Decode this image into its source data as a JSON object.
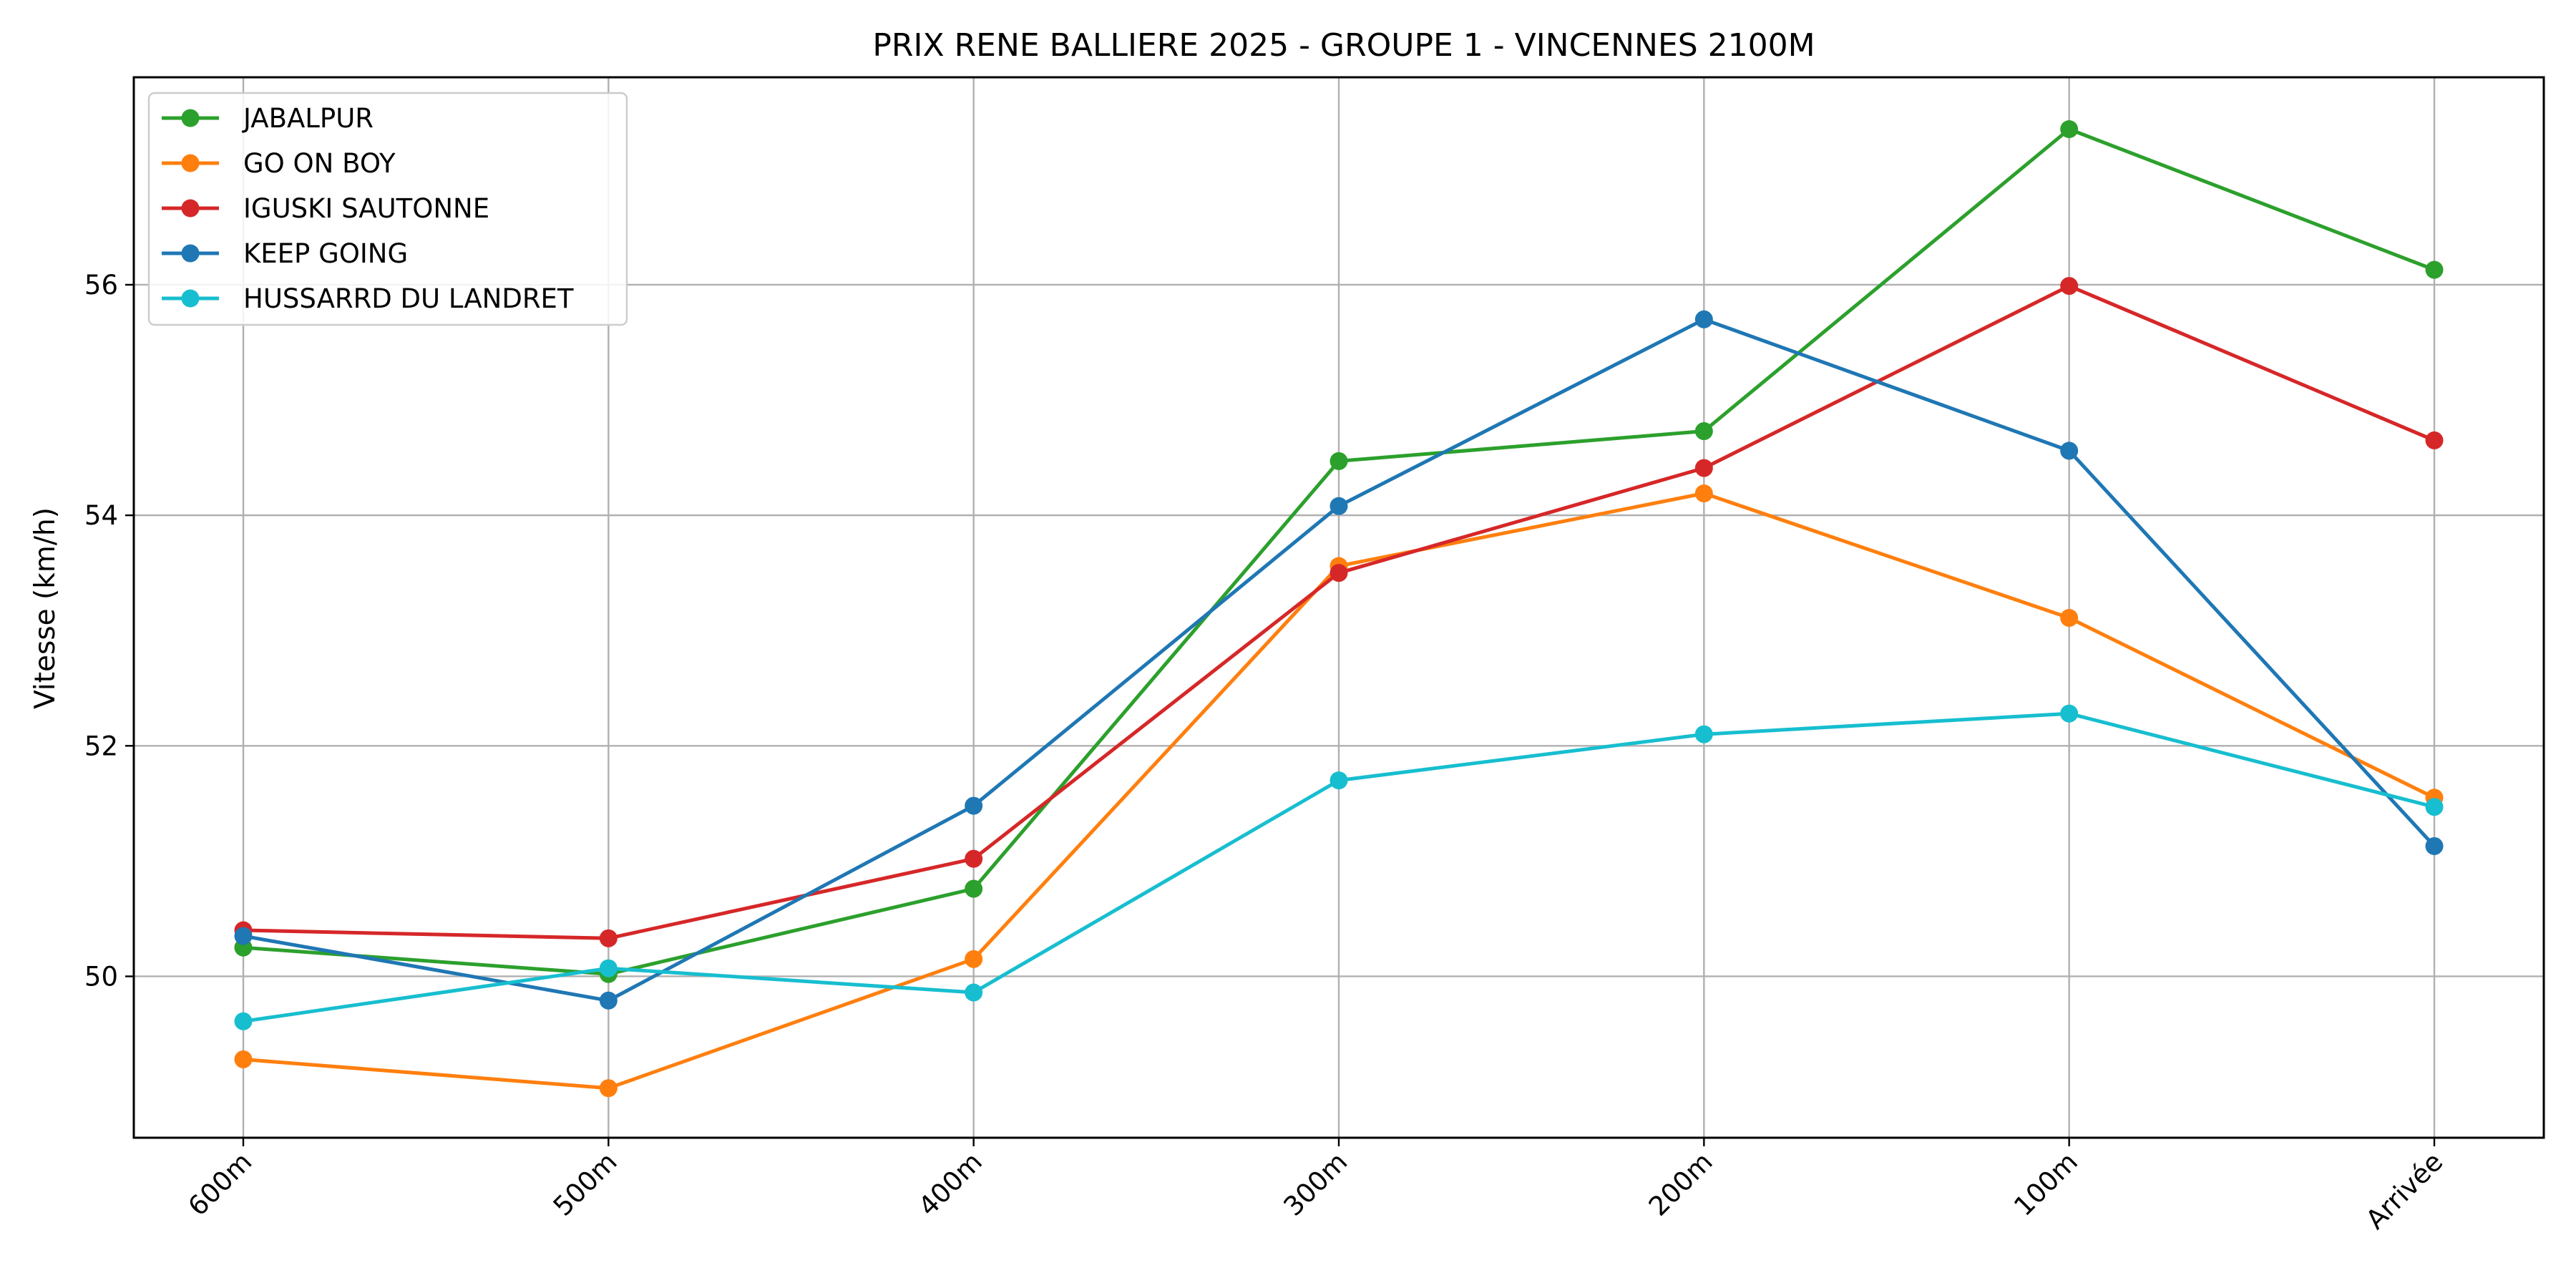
{
  "chart_data": {
    "type": "line",
    "title": "PRIX RENE BALLIERE 2025 - GROUPE 1 - VINCENNES 2100M",
    "xlabel": "",
    "ylabel": "Vitesse (km/h)",
    "categories": [
      "600m",
      "500m",
      "400m",
      "300m",
      "200m",
      "100m",
      "Arrivée"
    ],
    "ylim": [
      48.6,
      57.8
    ],
    "yticks": [
      50,
      52,
      54,
      56
    ],
    "grid": true,
    "legend_position": "top-left",
    "series": [
      {
        "name": "JABALPUR",
        "color": "#2ca02c",
        "values": [
          50.25,
          50.02,
          50.76,
          54.47,
          54.73,
          57.35,
          56.13
        ]
      },
      {
        "name": "GO ON BOY",
        "color": "#ff7f0e",
        "values": [
          49.28,
          49.03,
          50.15,
          53.56,
          54.19,
          53.11,
          51.55
        ]
      },
      {
        "name": "IGUSKI SAUTONNE",
        "color": "#d62728",
        "values": [
          50.4,
          50.33,
          51.02,
          53.5,
          54.41,
          55.99,
          54.65
        ]
      },
      {
        "name": "KEEP GOING",
        "color": "#1f77b4",
        "values": [
          50.35,
          49.79,
          51.48,
          54.08,
          55.7,
          54.56,
          51.13
        ]
      },
      {
        "name": "HUSSARRD DU LANDRET",
        "color": "#17becf",
        "values": [
          49.61,
          50.07,
          49.86,
          51.7,
          52.1,
          52.28,
          51.47
        ]
      }
    ]
  }
}
